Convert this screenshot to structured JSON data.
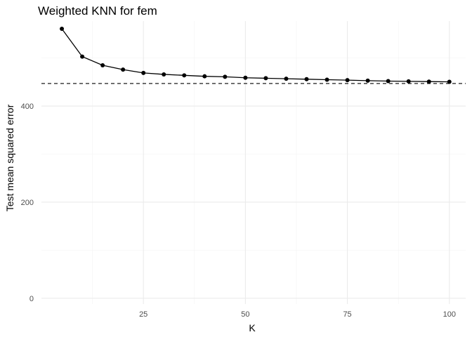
{
  "chart_data": {
    "type": "line",
    "title": "Weighted KNN for fem",
    "xlabel": "K",
    "ylabel": "Test mean squared error",
    "xlim": [
      0,
      104
    ],
    "ylim": [
      -12,
      577
    ],
    "x_ticks": [
      25,
      50,
      75,
      100
    ],
    "x_tick_labels": [
      "25",
      "50",
      "75",
      "100"
    ],
    "y_ticks": [
      0,
      200,
      400
    ],
    "y_tick_labels": [
      "0",
      "200",
      "400"
    ],
    "grid": true,
    "legend": "none",
    "x": [
      5,
      10,
      15,
      20,
      25,
      30,
      35,
      40,
      45,
      50,
      55,
      60,
      65,
      70,
      75,
      80,
      85,
      90,
      95,
      100
    ],
    "series": [
      {
        "values": [
          561,
          503,
          485,
          476,
          469,
          466,
          464,
          462,
          461,
          459,
          458,
          457,
          456,
          455,
          454,
          453,
          452,
          451.5,
          451,
          450.5
        ]
      }
    ],
    "reference_line": {
      "y": 447,
      "style": "dashed"
    }
  }
}
